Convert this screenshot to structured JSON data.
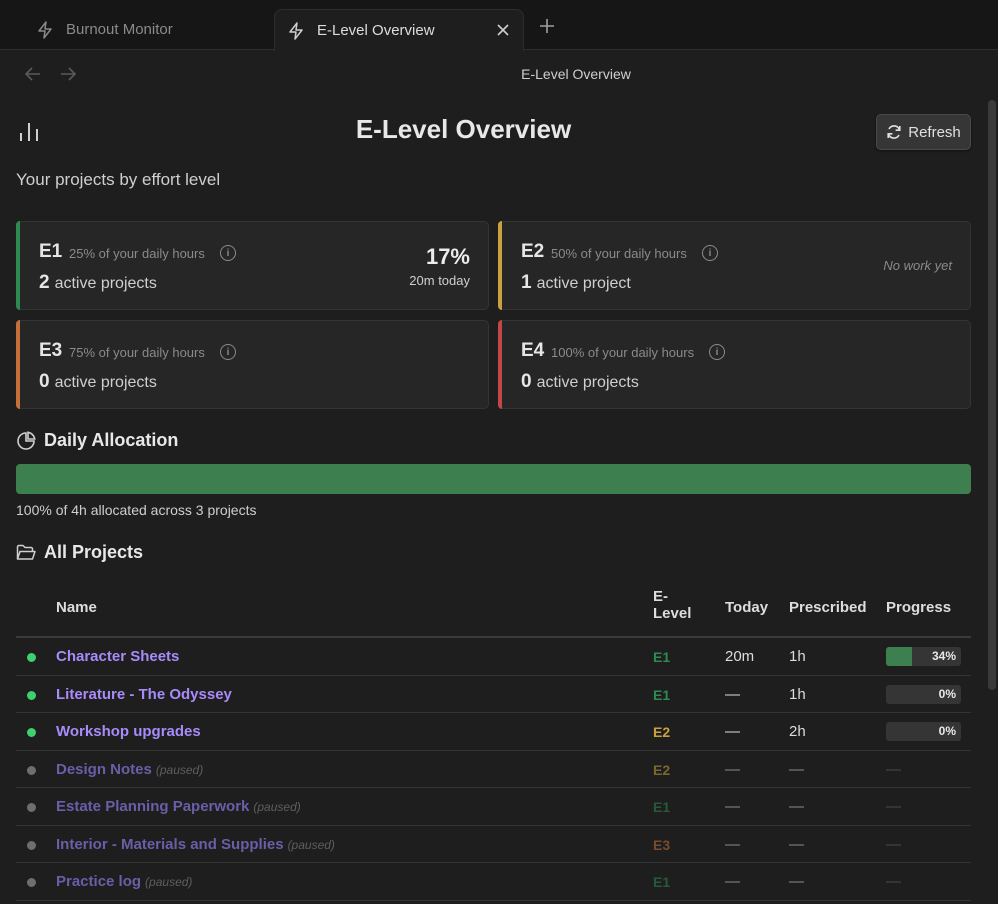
{
  "tabs": [
    {
      "label": "Burnout Monitor",
      "icon": "bolt-icon",
      "active": false
    },
    {
      "label": "E-Level Overview",
      "icon": "bolt-icon",
      "active": true
    }
  ],
  "nav": {
    "title": "E-Level Overview"
  },
  "header": {
    "title": "E-Level Overview",
    "refresh_label": "Refresh",
    "subtitle": "Your projects by effort level"
  },
  "cards": [
    {
      "level": "E1",
      "hours": "25% of your daily hours",
      "count": "2",
      "count_label": "active projects",
      "pct": "17%",
      "today": "20m today",
      "color": "#2f8a52"
    },
    {
      "level": "E2",
      "hours": "50% of your daily hours",
      "count": "1",
      "count_label": "active project",
      "no_work": "No work yet",
      "color": "#c9a23f"
    },
    {
      "level": "E3",
      "hours": "75% of your daily hours",
      "count": "0",
      "count_label": "active projects",
      "color": "#c4703b"
    },
    {
      "level": "E4",
      "hours": "100% of your daily hours",
      "count": "0",
      "count_label": "active projects",
      "color": "#c14848"
    }
  ],
  "allocation": {
    "title": "Daily Allocation",
    "fill_percent": 100,
    "summary": "100% of 4h allocated across 3 projects"
  },
  "projects": {
    "title": "All Projects",
    "columns": {
      "name": "Name",
      "elevel_1": "E-",
      "elevel_2": "Level",
      "today": "Today",
      "prescribed": "Prescribed",
      "progress": "Progress"
    },
    "rows": [
      {
        "name": "Character Sheets",
        "tag": "",
        "level": "E1",
        "today": "20m",
        "prescribed": "1h",
        "progress": 34,
        "progress_label": "34%",
        "active": true
      },
      {
        "name": "Literature - The Odyssey",
        "tag": "",
        "level": "E1",
        "today": "—",
        "prescribed": "1h",
        "progress": 0,
        "progress_label": "0%",
        "active": true
      },
      {
        "name": "Workshop upgrades",
        "tag": "",
        "level": "E2",
        "today": "—",
        "prescribed": "2h",
        "progress": 0,
        "progress_label": "0%",
        "active": true
      },
      {
        "name": "Design Notes",
        "tag": "(paused)",
        "level": "E2",
        "today": "—",
        "prescribed": "—",
        "progress_dash": "—",
        "active": false
      },
      {
        "name": "Estate Planning Paperwork",
        "tag": "(paused)",
        "level": "E1",
        "today": "—",
        "prescribed": "—",
        "progress_dash": "—",
        "active": false
      },
      {
        "name": "Interior - Materials and Supplies",
        "tag": "(paused)",
        "level": "E3",
        "today": "—",
        "prescribed": "—",
        "progress_dash": "—",
        "active": false
      },
      {
        "name": "Practice log",
        "tag": "(paused)",
        "level": "E1",
        "today": "—",
        "prescribed": "—",
        "progress_dash": "—",
        "active": false
      }
    ]
  },
  "colors": {
    "accent": "#a88bfa",
    "active_dot": "#3ecf6e",
    "paused_dot": "#6e6e6e",
    "progress_fill": "#3d7f4e",
    "E1": "#2f8a52",
    "E2": "#c9a23f",
    "E3": "#c4703b",
    "E4": "#c14848"
  }
}
